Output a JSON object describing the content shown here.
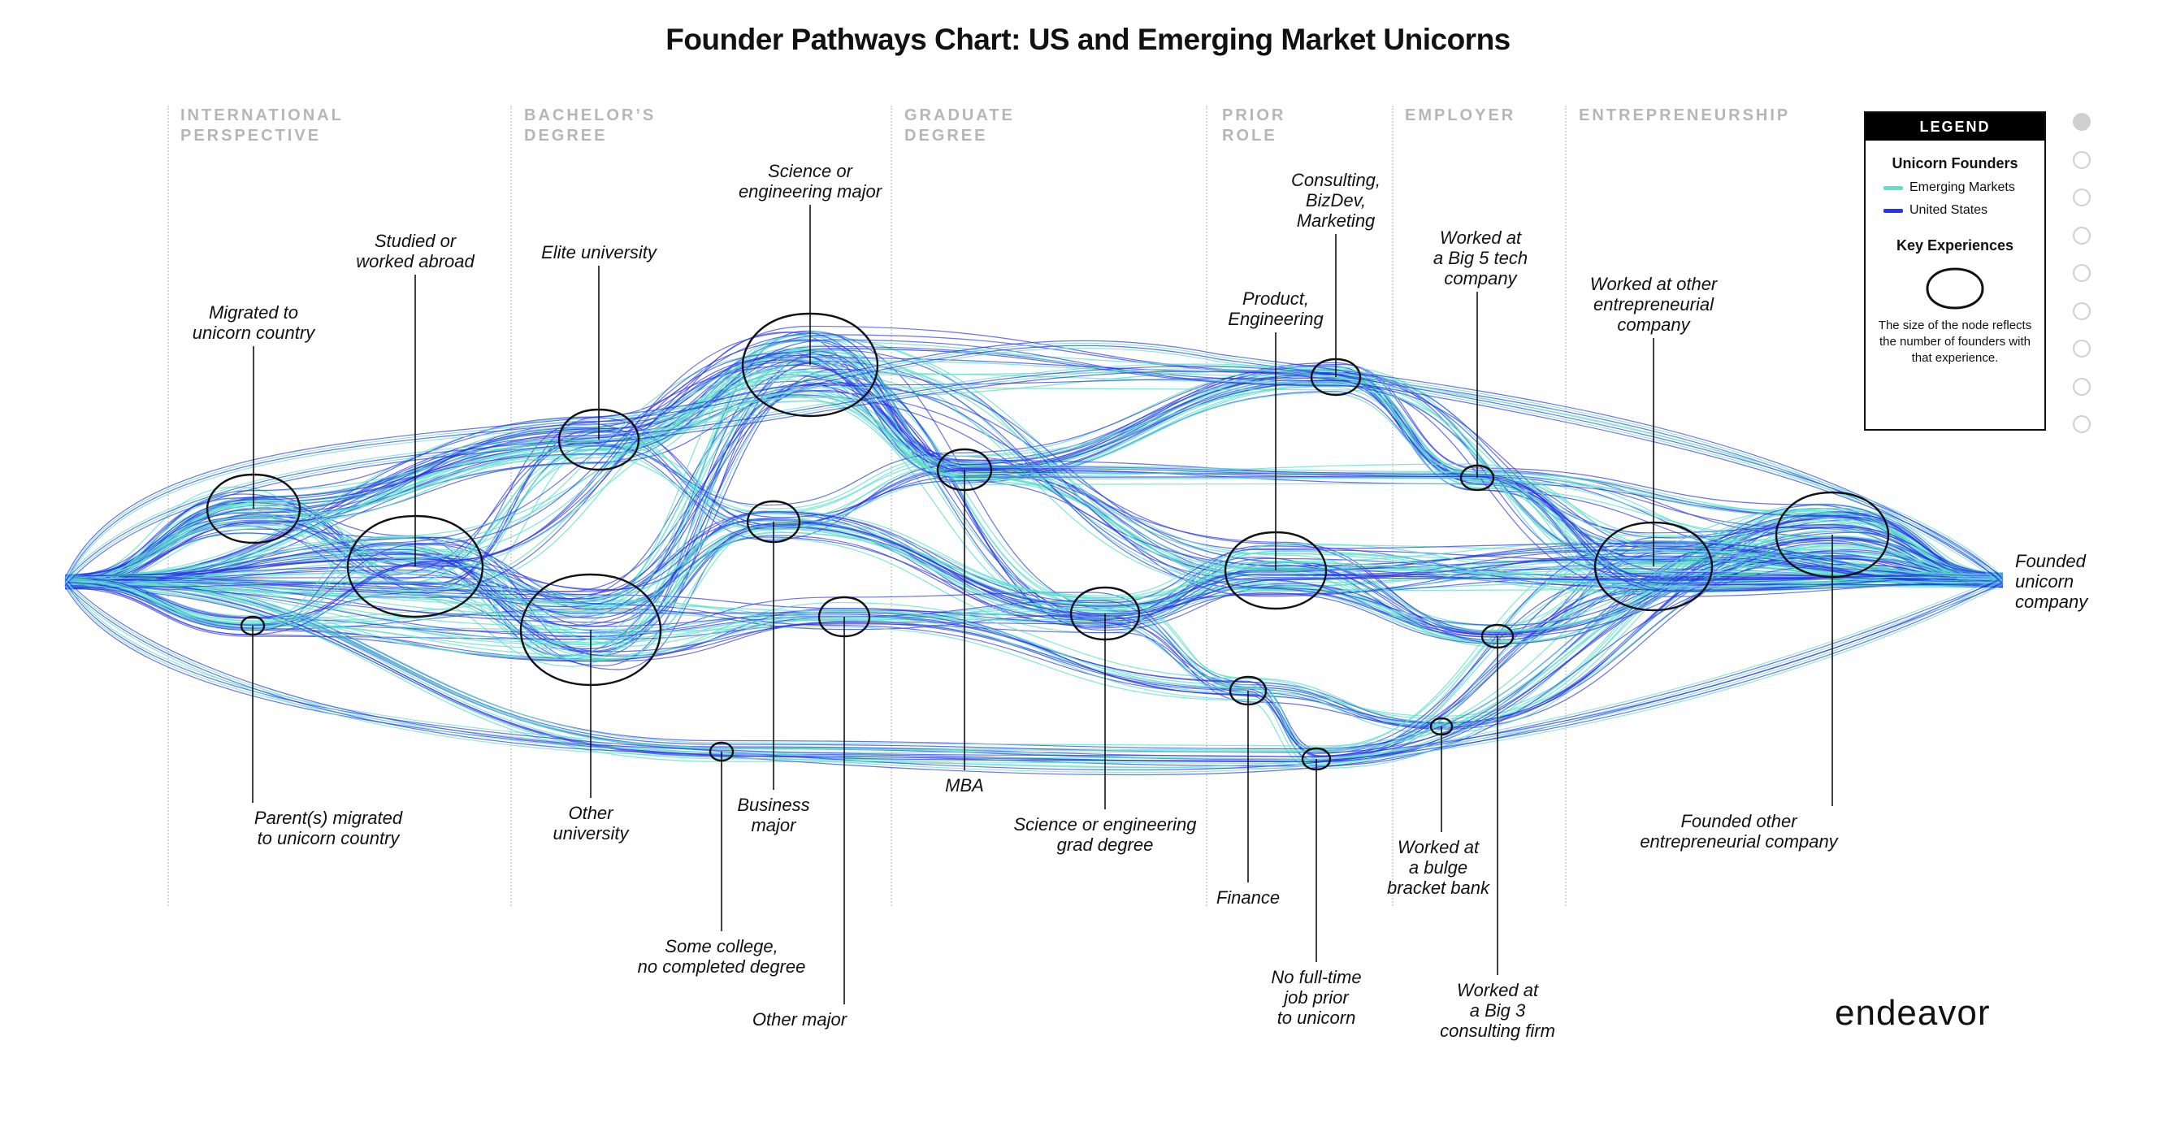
{
  "title": "Founder Pathways Chart: US and Emerging Market Unicorns",
  "brand": "endeavor",
  "stages": [
    {
      "id": "international",
      "label": "INTERNATIONAL\nPERSPECTIVE"
    },
    {
      "id": "bachelors",
      "label": "BACHELOR’S\nDEGREE"
    },
    {
      "id": "graduate",
      "label": "GRADUATE\nDEGREE"
    },
    {
      "id": "prior",
      "label": "PRIOR\nROLE"
    },
    {
      "id": "employer",
      "label": "EMPLOYER"
    },
    {
      "id": "entrepreneurship",
      "label": "ENTREPRENEURSHIP"
    }
  ],
  "legend": {
    "header": "LEGEND",
    "founders_title": "Unicorn Founders",
    "series": [
      {
        "name": "Emerging Markets",
        "color": "#5fe0cc"
      },
      {
        "name": "United States",
        "color": "#2b35e8"
      }
    ],
    "key_title": "Key Experiences",
    "note": "The size of the node reflects the number of founders with that experience."
  },
  "nodes": [
    {
      "id": "start",
      "label": ""
    },
    {
      "id": "migrated",
      "stage": "international",
      "label": "Migrated to\nunicorn country",
      "size": "medium"
    },
    {
      "id": "abroad",
      "stage": "international",
      "label": "Studied or\nworked abroad",
      "size": "large"
    },
    {
      "id": "parents",
      "stage": "international",
      "label": "Parent(s) migrated\nto unicorn country",
      "size": "tiny"
    },
    {
      "id": "elite",
      "stage": "bachelors",
      "label": "Elite university",
      "size": "medium"
    },
    {
      "id": "otheruni",
      "stage": "bachelors",
      "label": "Other\nuniversity",
      "size": "large"
    },
    {
      "id": "somecollege",
      "stage": "bachelors",
      "label": "Some college,\nno completed degree",
      "size": "tiny"
    },
    {
      "id": "science",
      "stage": "bachelors",
      "label": "Science or\nengineering major",
      "size": "large"
    },
    {
      "id": "business",
      "stage": "bachelors",
      "label": "Business\nmajor",
      "size": "small"
    },
    {
      "id": "othermajor",
      "stage": "bachelors",
      "label": "Other major",
      "size": "small"
    },
    {
      "id": "mba",
      "stage": "graduate",
      "label": "MBA",
      "size": "small"
    },
    {
      "id": "sciencegrad",
      "stage": "graduate",
      "label": "Science or engineering\ngrad degree",
      "size": "small"
    },
    {
      "id": "consulting",
      "stage": "prior",
      "label": "Consulting,\nBizDev,\nMarketing",
      "size": "small"
    },
    {
      "id": "product",
      "stage": "prior",
      "label": "Product,\nEngineering",
      "size": "medium"
    },
    {
      "id": "finance",
      "stage": "prior",
      "label": "Finance",
      "size": "small"
    },
    {
      "id": "nojob",
      "stage": "prior",
      "label": "No full-time\njob prior\nto unicorn",
      "size": "tiny"
    },
    {
      "id": "big5",
      "stage": "employer",
      "label": "Worked at\na Big 5 tech\ncompany",
      "size": "tiny"
    },
    {
      "id": "bulge",
      "stage": "employer",
      "label": "Worked at\na bulge\nbracket bank",
      "size": "tiny"
    },
    {
      "id": "big3",
      "stage": "employer",
      "label": "Worked at\na Big 3\nconsulting firm",
      "size": "tiny"
    },
    {
      "id": "otherent",
      "stage": "entrepreneurship",
      "label": "Worked at other\nentrepreneurial\ncompany",
      "size": "large"
    },
    {
      "id": "foundedother",
      "stage": "entrepreneurship",
      "label": "Founded other\nentrepreneurial company",
      "size": "medium"
    },
    {
      "id": "end",
      "label": "Founded\nunicorn\ncompany"
    }
  ],
  "pager": {
    "count": 9,
    "active": 0
  }
}
